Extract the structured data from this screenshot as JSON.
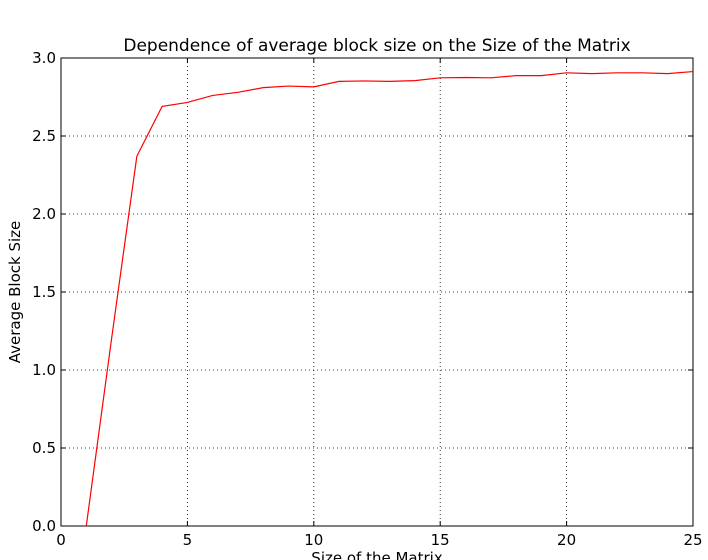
{
  "chart_data": {
    "type": "line",
    "title": "Dependence of average block size on the Size of the Matrix",
    "xlabel": "Size of the Matrix",
    "ylabel": "Average Block Size",
    "xlim": [
      0,
      25
    ],
    "ylim": [
      0.0,
      3.0
    ],
    "grid": true,
    "x_ticks": [
      0,
      5,
      10,
      15,
      20,
      25
    ],
    "x_tick_labels": [
      "0",
      "5",
      "10",
      "15",
      "20",
      "25"
    ],
    "y_ticks": [
      0.0,
      0.5,
      1.0,
      1.5,
      2.0,
      2.5,
      3.0
    ],
    "y_tick_labels": [
      "0.0",
      "0.5",
      "1.0",
      "1.5",
      "2.0",
      "2.5",
      "3.0"
    ],
    "series": [
      {
        "color": "#ff0000",
        "x": [
          1,
          2,
          3,
          4,
          5,
          6,
          7,
          8,
          9,
          10,
          11,
          12,
          13,
          14,
          15,
          16,
          17,
          18,
          19,
          20,
          21,
          22,
          23,
          24,
          25
        ],
        "y": [
          0.0,
          1.2,
          2.37,
          2.69,
          2.715,
          2.76,
          2.78,
          2.81,
          2.82,
          2.815,
          2.85,
          2.853,
          2.85,
          2.855,
          2.873,
          2.875,
          2.873,
          2.887,
          2.887,
          2.905,
          2.9,
          2.905,
          2.905,
          2.9,
          2.913
        ]
      }
    ]
  }
}
